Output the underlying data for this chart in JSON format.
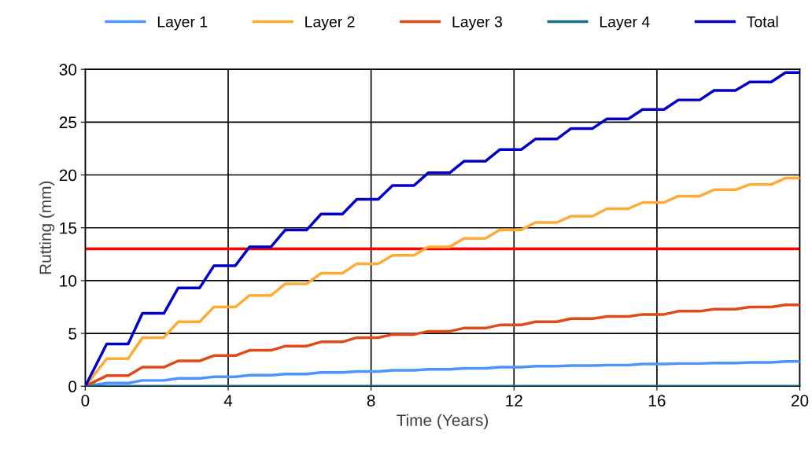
{
  "chart_data": {
    "type": "line",
    "xlabel": "Time (Years)",
    "ylabel": "Rutting (mm)",
    "x": [
      0,
      0.6,
      1.2,
      1.6,
      2.2,
      2.6,
      3.2,
      3.6,
      4.2,
      4.6,
      5.2,
      5.6,
      6.2,
      6.6,
      7.2,
      7.6,
      8.2,
      8.6,
      9.2,
      9.6,
      10.2,
      10.6,
      11.2,
      11.6,
      12.2,
      12.6,
      13.2,
      13.6,
      14.2,
      14.6,
      15.2,
      15.6,
      16.2,
      16.6,
      17.2,
      17.6,
      18.2,
      18.6,
      19.2,
      19.6,
      20
    ],
    "series": [
      {
        "name": "Layer 1",
        "color": "#4d94ff",
        "values": [
          0,
          0.3,
          0.3,
          0.55,
          0.55,
          0.75,
          0.75,
          0.9,
          0.9,
          1.05,
          1.05,
          1.15,
          1.15,
          1.3,
          1.3,
          1.4,
          1.4,
          1.5,
          1.5,
          1.6,
          1.6,
          1.7,
          1.7,
          1.8,
          1.8,
          1.9,
          1.9,
          1.95,
          1.95,
          2.0,
          2.0,
          2.1,
          2.1,
          2.15,
          2.15,
          2.2,
          2.2,
          2.25,
          2.25,
          2.35,
          2.35
        ]
      },
      {
        "name": "Layer 2",
        "color": "#ffaa33",
        "values": [
          0,
          2.6,
          2.6,
          4.6,
          4.6,
          6.1,
          6.1,
          7.5,
          7.5,
          8.6,
          8.6,
          9.7,
          9.7,
          10.7,
          10.7,
          11.6,
          11.6,
          12.4,
          12.4,
          13.2,
          13.2,
          14.0,
          14.0,
          14.8,
          14.8,
          15.5,
          15.5,
          16.1,
          16.1,
          16.8,
          16.8,
          17.4,
          17.4,
          18.0,
          18.0,
          18.6,
          18.6,
          19.1,
          19.1,
          19.7,
          19.7
        ]
      },
      {
        "name": "Layer 3",
        "color": "#e04a14",
        "values": [
          0,
          1.0,
          1.0,
          1.8,
          1.8,
          2.4,
          2.4,
          2.9,
          2.9,
          3.4,
          3.4,
          3.8,
          3.8,
          4.2,
          4.2,
          4.6,
          4.6,
          4.9,
          4.9,
          5.2,
          5.2,
          5.5,
          5.5,
          5.8,
          5.8,
          6.1,
          6.1,
          6.4,
          6.4,
          6.6,
          6.6,
          6.8,
          6.8,
          7.1,
          7.1,
          7.3,
          7.3,
          7.5,
          7.5,
          7.7,
          7.7
        ]
      },
      {
        "name": "Layer 4",
        "color": "#1a6e8a",
        "x": [
          0,
          20
        ],
        "values": [
          0,
          0
        ]
      },
      {
        "name": "Total",
        "color": "#0000c8",
        "values": [
          0,
          4.0,
          4.0,
          6.9,
          6.9,
          9.3,
          9.3,
          11.4,
          11.4,
          13.2,
          13.2,
          14.8,
          14.8,
          16.3,
          16.3,
          17.7,
          17.7,
          19.0,
          19.0,
          20.2,
          20.2,
          21.3,
          21.3,
          22.4,
          22.4,
          23.4,
          23.4,
          24.4,
          24.4,
          25.3,
          25.3,
          26.2,
          26.2,
          27.1,
          27.1,
          28.0,
          28.0,
          28.8,
          28.8,
          29.7,
          29.7
        ]
      }
    ],
    "ref_lines": [
      {
        "axis": "y",
        "value": 13,
        "color": "#ff0000"
      }
    ],
    "xlim": [
      0,
      20
    ],
    "xticks": [
      0,
      4,
      8,
      12,
      16,
      20
    ],
    "ylim": [
      0,
      30
    ],
    "yticks": [
      0,
      5,
      10,
      15,
      20,
      25,
      30
    ],
    "grid": true,
    "legend": "top"
  }
}
